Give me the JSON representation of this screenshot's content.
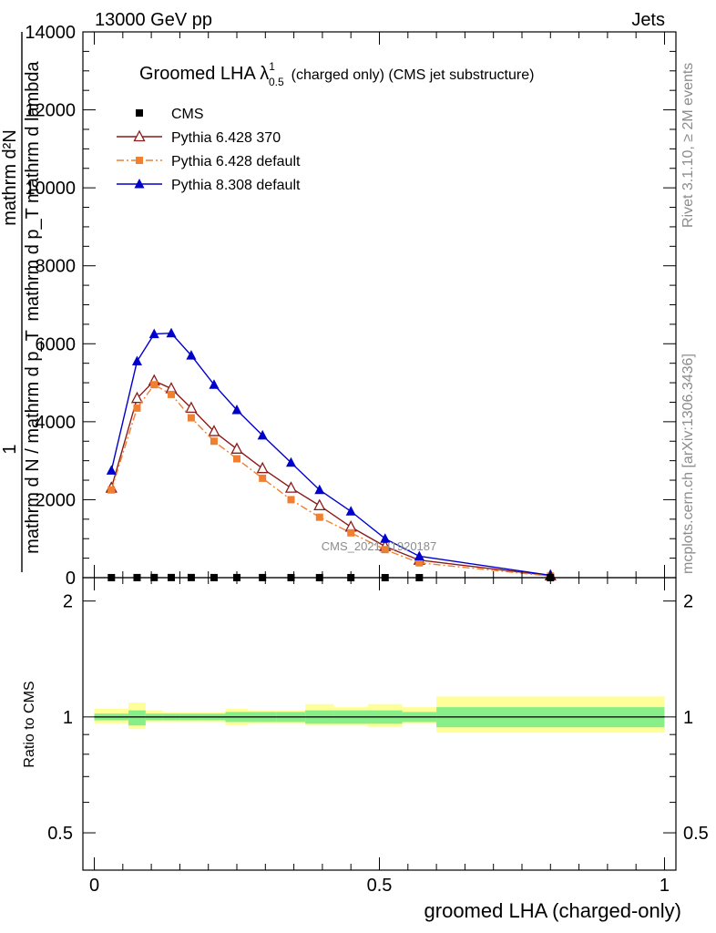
{
  "header": {
    "energy_label": "13000 GeV pp",
    "category_label": "Jets"
  },
  "plot_title": {
    "prefix": "Groomed LHA ",
    "symbol": "λ",
    "sup": "1",
    "sub": "0.5",
    "suffix": "(charged only) (CMS jet substructure)"
  },
  "side_labels": {
    "rivet": "Rivet 3.1.10, ≥ 2M events",
    "mcplots": "mcplots.cern.ch [arXiv:1306.3436]"
  },
  "watermark": "CMS_2021_I1920187",
  "yaxis_label": {
    "fraction_numerator": "1",
    "fraction_denominator": "mathrm d N / mathrm d p_T",
    "inner_numerator": "mathrm d²N",
    "inner_denominator": "mathrm d p_T mathrm d lambda"
  },
  "ratio_ylabel": "Ratio to CMS",
  "xlabel": "groomed LHA (charged-only)",
  "legend": {
    "position": "top-left",
    "entries": [
      {
        "label": "CMS",
        "marker": "square",
        "color": "#000000",
        "line": "none"
      },
      {
        "label": "Pythia 6.428 370",
        "marker": "open-triangle",
        "color": "#8b1a1a",
        "line": "solid"
      },
      {
        "label": "Pythia 6.428 default",
        "marker": "square",
        "color": "#f08030",
        "line": "dashdot"
      },
      {
        "label": "Pythia 8.308 default",
        "marker": "triangle",
        "color": "#0000cc",
        "line": "solid"
      }
    ]
  },
  "chart_data": {
    "type": "line",
    "title": "Groomed LHA λ^1_0.5 (charged only) (CMS jet substructure)",
    "xlabel": "groomed LHA (charged-only)",
    "xlim": [
      -0.02,
      1.02
    ],
    "ylim": [
      0,
      14000
    ],
    "x_ticks": [
      0,
      0.5,
      1
    ],
    "x_tick_labels": [
      "0",
      "0.5",
      "1"
    ],
    "y_ticks": [
      0,
      2000,
      4000,
      6000,
      8000,
      10000,
      12000,
      14000
    ],
    "y_tick_labels": [
      "0",
      "2000",
      "4000",
      "6000",
      "8000",
      "10000",
      "12000",
      "14000"
    ],
    "bins": [
      0.0,
      0.06,
      0.09,
      0.12,
      0.15,
      0.19,
      0.23,
      0.27,
      0.32,
      0.37,
      0.42,
      0.48,
      0.54,
      0.6,
      1.0
    ],
    "x": [
      0.03,
      0.075,
      0.105,
      0.135,
      0.17,
      0.21,
      0.25,
      0.295,
      0.345,
      0.395,
      0.45,
      0.51,
      0.57,
      0.8
    ],
    "series": [
      {
        "name": "CMS",
        "values": [
          1,
          2,
          3,
          3,
          3,
          2,
          2,
          2,
          1.5,
          1,
          0.8,
          0.6,
          0.4,
          0.1
        ]
      },
      {
        "name": "Pythia 6.428 370",
        "values": [
          2300,
          4600,
          5050,
          4850,
          4350,
          3750,
          3300,
          2800,
          2300,
          1850,
          1300,
          800,
          450,
          50
        ]
      },
      {
        "name": "Pythia 6.428 default",
        "values": [
          2250,
          4350,
          4950,
          4700,
          4100,
          3500,
          3050,
          2550,
          2000,
          1550,
          1150,
          720,
          380,
          40
        ]
      },
      {
        "name": "Pythia 8.308 default",
        "values": [
          2750,
          5550,
          6250,
          6270,
          5700,
          4950,
          4300,
          3650,
          2950,
          2250,
          1700,
          1000,
          550,
          60
        ]
      }
    ],
    "ratio": {
      "ylabel": "Ratio to CMS",
      "ylim": [
        0.4,
        2.3
      ],
      "scale": "log",
      "y_ticks": [
        0.5,
        1,
        2
      ],
      "y_tick_labels": [
        "0.5",
        "1",
        "2"
      ],
      "band_inner": [
        [
          0.98,
          1.02
        ],
        [
          0.95,
          1.04
        ],
        [
          0.98,
          1.02
        ],
        [
          0.98,
          1.02
        ],
        [
          0.98,
          1.02
        ],
        [
          0.98,
          1.02
        ],
        [
          0.97,
          1.03
        ],
        [
          0.97,
          1.03
        ],
        [
          0.97,
          1.03
        ],
        [
          0.96,
          1.04
        ],
        [
          0.96,
          1.04
        ],
        [
          0.96,
          1.04
        ],
        [
          0.97,
          1.03
        ],
        [
          0.94,
          1.06
        ]
      ],
      "band_outer": [
        [
          0.96,
          1.05
        ],
        [
          0.93,
          1.09
        ],
        [
          0.97,
          1.04
        ],
        [
          0.97,
          1.03
        ],
        [
          0.97,
          1.03
        ],
        [
          0.97,
          1.03
        ],
        [
          0.95,
          1.05
        ],
        [
          0.96,
          1.04
        ],
        [
          0.96,
          1.04
        ],
        [
          0.95,
          1.08
        ],
        [
          0.95,
          1.06
        ],
        [
          0.94,
          1.08
        ],
        [
          0.96,
          1.06
        ],
        [
          0.91,
          1.13
        ]
      ]
    }
  }
}
